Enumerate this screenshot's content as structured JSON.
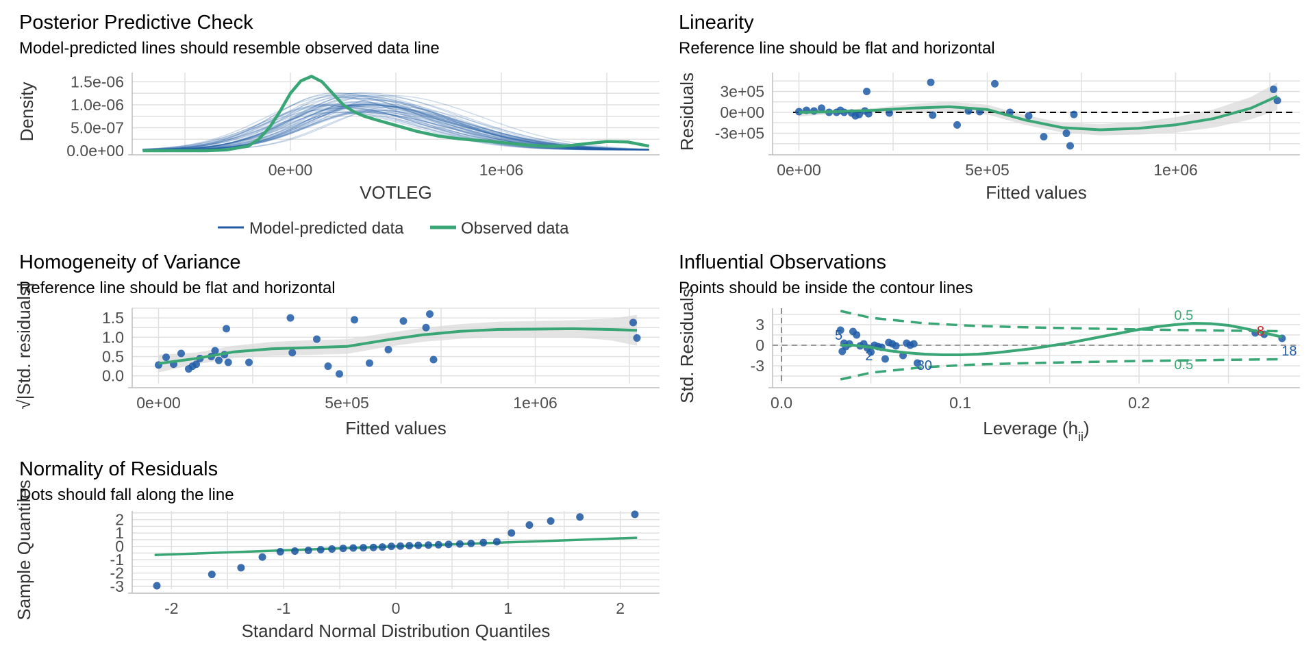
{
  "colors": {
    "blue": "#1f5aa6",
    "green": "#3aa675",
    "grid": "#e0e0e0",
    "ribbon": "#d9d9d9",
    "highlight": "#d62728"
  },
  "chart_data": [
    {
      "id": "ppc",
      "type": "line",
      "title": "Posterior Predictive Check",
      "subtitle": "Model-predicted lines should resemble observed data line",
      "xlabel": "VOTLEG",
      "ylabel": "Density",
      "xlim": [
        -750000,
        1750000
      ],
      "ylim": [
        0,
        1.7e-06
      ],
      "x_ticks": [
        {
          "v": 0,
          "label": "0e+00"
        },
        {
          "v": 1000000,
          "label": "1e+06"
        }
      ],
      "y_ticks": [
        {
          "v": 0,
          "label": "0.0e+00"
        },
        {
          "v": 5e-07,
          "label": "5.0e-07"
        },
        {
          "v": 1e-06,
          "label": "1.0e-06"
        },
        {
          "v": 1.5e-06,
          "label": "1.5e-06"
        }
      ],
      "legend": {
        "position": "bottom",
        "entries": [
          "Model-predicted data",
          "Observed data"
        ]
      },
      "series": [
        {
          "name": "Observed data",
          "x": [
            -700000,
            -400000,
            -300000,
            -200000,
            -150000,
            -100000,
            -50000,
            0,
            50000,
            100000,
            150000,
            200000,
            250000,
            300000,
            350000,
            400000,
            500000,
            600000,
            700000,
            800000,
            900000,
            1000000,
            1100000,
            1200000,
            1300000,
            1400000,
            1500000,
            1600000,
            1700000
          ],
          "y": [
            0,
            0,
            2e-08,
            1e-07,
            2.5e-07,
            5e-07,
            8.5e-07,
            1.25e-06,
            1.52e-06,
            1.62e-06,
            1.5e-06,
            1.25e-06,
            1e-06,
            8.5e-07,
            7.5e-07,
            6.8e-07,
            5.5e-07,
            4.2e-07,
            3.2e-07,
            2.6e-07,
            2.2e-07,
            1.8e-07,
            1.3e-07,
            1e-07,
            1e-07,
            1.5e-07,
            2e-07,
            1.9e-07,
            1e-07
          ]
        }
      ],
      "predicted_draws": {
        "name": "Model-predicted data",
        "count": 50,
        "x_range": [
          -700000,
          1700000
        ],
        "peak_x_range": [
          150000,
          500000
        ],
        "peak_y_range": [
          8e-07,
          1.25e-06
        ]
      }
    },
    {
      "id": "linearity",
      "type": "scatter",
      "title": "Linearity",
      "subtitle": "Reference line should be flat and horizontal",
      "xlabel": "Fitted values",
      "ylabel": "Residuals",
      "xlim": [
        -70000,
        1330000
      ],
      "ylim": [
        -550000,
        570000
      ],
      "x_ticks": [
        {
          "v": 0,
          "label": "0e+00"
        },
        {
          "v": 500000,
          "label": "5e+05"
        },
        {
          "v": 1000000,
          "label": "1e+06"
        }
      ],
      "y_ticks": [
        {
          "v": -300000,
          "label": "-3e+05"
        },
        {
          "v": 0,
          "label": "0e+00"
        },
        {
          "v": 300000,
          "label": "3e+05"
        }
      ],
      "points": {
        "x": [
          0,
          20000,
          40000,
          60000,
          80000,
          100000,
          110000,
          120000,
          140000,
          150000,
          160000,
          175000,
          180000,
          185000,
          240000,
          350000,
          355000,
          420000,
          450000,
          480000,
          520000,
          560000,
          610000,
          650000,
          710000,
          720000,
          730000,
          1260000,
          1270000
        ],
        "y": [
          10000,
          30000,
          20000,
          60000,
          0,
          0,
          30000,
          0,
          -10000,
          -50000,
          -30000,
          20000,
          300000,
          -20000,
          -10000,
          430000,
          -40000,
          -180000,
          20000,
          10000,
          410000,
          0,
          -50000,
          -350000,
          -300000,
          -480000,
          -30000,
          330000,
          170000
        ]
      },
      "smooth": {
        "x": [
          0,
          100000,
          200000,
          300000,
          400000,
          500000,
          600000,
          700000,
          800000,
          900000,
          1000000,
          1100000,
          1200000,
          1270000
        ],
        "y": [
          0,
          10000,
          30000,
          60000,
          80000,
          40000,
          -110000,
          -220000,
          -250000,
          -230000,
          -180000,
          -90000,
          60000,
          230000
        ],
        "se_upper": [
          60000,
          40000,
          60000,
          120000,
          150000,
          110000,
          -40000,
          -150000,
          -170000,
          -140000,
          -70000,
          40000,
          220000,
          430000
        ],
        "se_lower": [
          -60000,
          -20000,
          0,
          10000,
          10000,
          -30000,
          -180000,
          -290000,
          -330000,
          -320000,
          -290000,
          -220000,
          -100000,
          30000
        ]
      },
      "reference_line": 0
    },
    {
      "id": "homogeneity",
      "type": "scatter",
      "title": "Homogeneity of Variance",
      "subtitle": "Reference line should be flat and horizontal",
      "xlabel": "Fitted values",
      "ylabel": "√|Std. residuals|",
      "xlim": [
        -70000,
        1330000
      ],
      "ylim": [
        -0.2,
        1.75
      ],
      "x_ticks": [
        {
          "v": 0,
          "label": "0e+00"
        },
        {
          "v": 500000,
          "label": "5e+05"
        },
        {
          "v": 1000000,
          "label": "1e+06"
        }
      ],
      "y_ticks": [
        {
          "v": 0,
          "label": "0.0"
        },
        {
          "v": 0.5,
          "label": "0.5"
        },
        {
          "v": 1,
          "label": "1.0"
        },
        {
          "v": 1.5,
          "label": "1.5"
        }
      ],
      "points": {
        "x": [
          0,
          20000,
          40000,
          60000,
          80000,
          90000,
          100000,
          110000,
          140000,
          150000,
          160000,
          175000,
          180000,
          185000,
          240000,
          350000,
          355000,
          420000,
          450000,
          480000,
          520000,
          560000,
          610000,
          650000,
          710000,
          720000,
          730000,
          1260000,
          1270000
        ],
        "y": [
          0.28,
          0.48,
          0.3,
          0.58,
          0.18,
          0.25,
          0.3,
          0.45,
          0.5,
          0.65,
          0.4,
          0.55,
          1.22,
          0.35,
          0.35,
          1.5,
          0.6,
          0.95,
          0.25,
          0.05,
          1.45,
          0.33,
          0.68,
          1.42,
          1.25,
          1.6,
          0.42,
          1.38,
          0.98
        ]
      },
      "smooth": {
        "x": [
          0,
          100000,
          200000,
          300000,
          400000,
          500000,
          600000,
          700000,
          800000,
          900000,
          1000000,
          1100000,
          1200000,
          1270000
        ],
        "y": [
          0.32,
          0.45,
          0.62,
          0.7,
          0.73,
          0.76,
          0.92,
          1.06,
          1.15,
          1.2,
          1.21,
          1.22,
          1.2,
          1.18
        ],
        "se_upper": [
          0.55,
          0.6,
          0.78,
          0.88,
          0.92,
          0.95,
          1.1,
          1.24,
          1.34,
          1.4,
          1.42,
          1.44,
          1.48,
          1.58
        ],
        "se_lower": [
          0.09,
          0.3,
          0.46,
          0.52,
          0.54,
          0.57,
          0.74,
          0.88,
          0.96,
          1.0,
          1.0,
          1.0,
          0.92,
          0.78
        ]
      }
    },
    {
      "id": "influential",
      "type": "scatter",
      "title": "Influential Observations",
      "subtitle": "Points should be inside the contour lines",
      "xlabel": "Leverage (h",
      "xlabel_sub": "ii",
      "xlabel_close": ")",
      "ylabel": "Std. Residuals",
      "xlim": [
        -0.005,
        0.29
      ],
      "ylim": [
        -5.6,
        5.4
      ],
      "x_ticks": [
        {
          "v": 0,
          "label": "0.0"
        },
        {
          "v": 0.1,
          "label": "0.1"
        },
        {
          "v": 0.2,
          "label": "0.2"
        }
      ],
      "y_ticks": [
        {
          "v": -3,
          "label": "-3"
        },
        {
          "v": 0,
          "label": "0"
        },
        {
          "v": 3,
          "label": "3"
        }
      ],
      "points": {
        "x": [
          0.033,
          0.034,
          0.035,
          0.036,
          0.038,
          0.04,
          0.042,
          0.044,
          0.046,
          0.048,
          0.05,
          0.052,
          0.054,
          0.056,
          0.058,
          0.06,
          0.062,
          0.064,
          0.068,
          0.07,
          0.072,
          0.074,
          0.076,
          0.265,
          0.27,
          0.28
        ],
        "y": [
          2.2,
          -0.9,
          0.3,
          -0.2,
          0.2,
          2.0,
          1.5,
          -0.1,
          0.2,
          -0.4,
          -1.0,
          0.0,
          -0.2,
          -0.3,
          -2.0,
          0.4,
          0.2,
          -0.1,
          -1.5,
          0.3,
          0.0,
          0.2,
          -2.6,
          1.8,
          1.6,
          1.0
        ]
      },
      "labels": [
        {
          "text": "5",
          "x": 0.032,
          "y": 1.4,
          "color": "blue"
        },
        {
          "text": "2",
          "x": 0.049,
          "y": -1.6,
          "color": "blue"
        },
        {
          "text": "30",
          "x": 0.08,
          "y": -3.0,
          "color": "blue"
        },
        {
          "text": "8",
          "x": 0.268,
          "y": 2.0,
          "color": "highlight"
        },
        {
          "text": "18",
          "x": 0.284,
          "y": -0.9,
          "color": "blue"
        }
      ],
      "smooth": {
        "x": [
          0.033,
          0.04,
          0.05,
          0.06,
          0.07,
          0.08,
          0.09,
          0.1,
          0.11,
          0.12,
          0.13,
          0.14,
          0.15,
          0.16,
          0.17,
          0.18,
          0.19,
          0.2,
          0.21,
          0.22,
          0.23,
          0.24,
          0.25,
          0.26,
          0.27,
          0.28
        ],
        "y": [
          0.0,
          0.0,
          -0.3,
          -0.8,
          -1.1,
          -1.3,
          -1.4,
          -1.4,
          -1.3,
          -1.1,
          -0.8,
          -0.5,
          -0.1,
          0.3,
          0.8,
          1.3,
          1.8,
          2.3,
          2.7,
          3.0,
          3.2,
          3.15,
          2.9,
          2.4,
          1.8,
          1.2
        ]
      },
      "contour_label": "0.5",
      "contours": {
        "x": [
          0.033,
          0.05,
          0.08,
          0.11,
          0.14,
          0.17,
          0.2,
          0.23,
          0.26,
          0.28
        ],
        "upper": [
          5.0,
          4.0,
          3.2,
          2.8,
          2.6,
          2.45,
          2.3,
          2.2,
          2.1,
          2.05
        ],
        "lower": [
          -5.0,
          -4.0,
          -3.2,
          -2.8,
          -2.6,
          -2.45,
          -2.3,
          -2.2,
          -2.1,
          -2.05
        ]
      },
      "contour_label_positions": [
        {
          "x": 0.225,
          "y": 3.7
        },
        {
          "x": 0.225,
          "y": -3.5
        }
      ],
      "reference_x": 0,
      "reference_y": 0
    },
    {
      "id": "normality",
      "type": "scatter",
      "title": "Normality of Residuals",
      "subtitle": "Dots should fall along the line",
      "xlabel": "Standard Normal Distribution Quantiles",
      "ylabel": "Sample Quantiles",
      "xlim": [
        -2.35,
        2.35
      ],
      "ylim": [
        -3.2,
        2.65
      ],
      "x_ticks": [
        {
          "v": -2,
          "label": "-2"
        },
        {
          "v": -1,
          "label": "-1"
        },
        {
          "v": 0,
          "label": "0"
        },
        {
          "v": 1,
          "label": "1"
        },
        {
          "v": 2,
          "label": "2"
        }
      ],
      "y_ticks": [
        {
          "v": -3,
          "label": "-3"
        },
        {
          "v": -2,
          "label": "-2"
        },
        {
          "v": -1,
          "label": "-1"
        },
        {
          "v": 0,
          "label": "0"
        },
        {
          "v": 1,
          "label": "1"
        },
        {
          "v": 2,
          "label": "2"
        }
      ],
      "points": {
        "x": [
          -2.13,
          -1.64,
          -1.38,
          -1.19,
          -1.03,
          -0.9,
          -0.78,
          -0.67,
          -0.57,
          -0.47,
          -0.38,
          -0.29,
          -0.2,
          -0.12,
          -0.04,
          0.04,
          0.12,
          0.2,
          0.29,
          0.38,
          0.47,
          0.57,
          0.67,
          0.78,
          0.9,
          1.03,
          1.19,
          1.38,
          1.64,
          2.13
        ],
        "y": [
          -2.95,
          -2.1,
          -1.6,
          -0.8,
          -0.4,
          -0.35,
          -0.3,
          -0.25,
          -0.2,
          -0.15,
          -0.12,
          -0.1,
          -0.08,
          -0.05,
          0.0,
          0.02,
          0.05,
          0.08,
          0.1,
          0.12,
          0.15,
          0.18,
          0.22,
          0.28,
          0.35,
          1.0,
          1.6,
          1.9,
          2.2,
          2.4
        ]
      },
      "reference_line": {
        "intercept": 0,
        "slope": 0.3
      }
    }
  ]
}
